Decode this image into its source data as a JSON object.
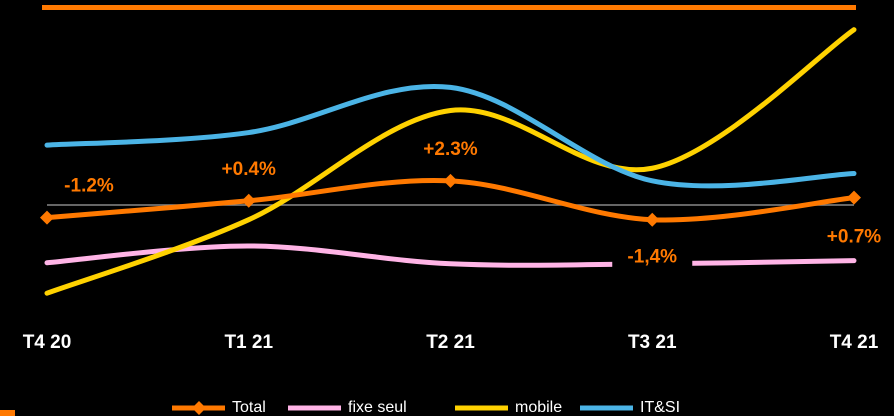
{
  "chart_data": {
    "type": "line",
    "categories": [
      "T4 20",
      "T1 21",
      "T2 21",
      "T3 21",
      "T4 21"
    ],
    "series": [
      {
        "name": "fixe seul",
        "color": "#ffb4e6",
        "values": [
          -5.5,
          -3.9,
          -5.6,
          -5.6,
          -5.3
        ]
      },
      {
        "name": "mobile",
        "color": "#ffd200",
        "values": [
          -8.4,
          -1.4,
          9.0,
          3.5,
          16.7
        ]
      },
      {
        "name": "IT&SI",
        "color": "#4bb4e6",
        "values": [
          5.7,
          6.9,
          11.2,
          2.3,
          3.0
        ]
      },
      {
        "name": "Total",
        "color": "#ff7900",
        "values": [
          -1.2,
          0.4,
          2.3,
          -1.4,
          0.7
        ],
        "value_labels": [
          "-1.2%",
          "+0.4%",
          "+2.3%",
          "-1,4%",
          "+0.7%"
        ]
      }
    ],
    "ylim": [
      -9,
      19
    ]
  }
}
